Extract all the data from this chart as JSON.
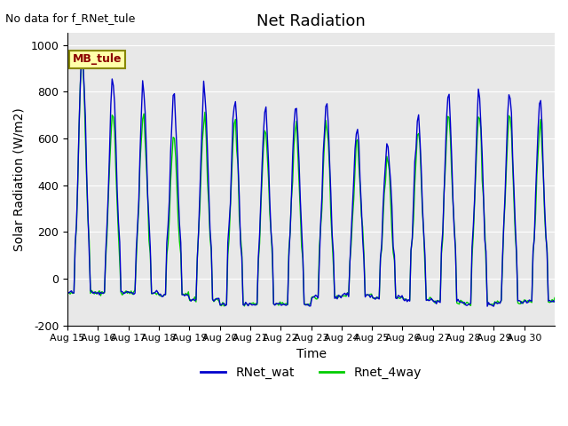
{
  "title": "Net Radiation",
  "xlabel": "Time",
  "ylabel": "Solar Radiation (W/m2)",
  "ylim": [
    -200,
    1050
  ],
  "bg_color": "#e8e8e8",
  "fig_color": "#ffffff",
  "line1_color": "#0000cc",
  "line2_color": "#00cc00",
  "line1_label": "RNet_wat",
  "line2_label": "Rnet_4way",
  "annotation_text": "No data for f_RNet_tule",
  "legend_label": "MB_tule",
  "xtick_labels": [
    "Aug 15",
    "Aug 16",
    "Aug 17",
    "Aug 18",
    "Aug 19",
    "Aug 20",
    "Aug 21",
    "Aug 22",
    "Aug 23",
    "Aug 24",
    "Aug 25",
    "Aug 26",
    "Aug 27",
    "Aug 28",
    "Aug 29",
    "Aug 30"
  ],
  "ytick_labels": [
    -200,
    0,
    200,
    400,
    600,
    800,
    1000
  ],
  "points_per_day": 24,
  "num_days": 16,
  "peaks_blue": [
    980,
    840,
    810,
    780,
    780,
    760,
    720,
    740,
    760,
    650,
    590,
    700,
    780,
    790,
    790,
    740
  ],
  "peaks_green": [
    940,
    700,
    700,
    600,
    680,
    660,
    630,
    640,
    660,
    570,
    520,
    630,
    690,
    700,
    700,
    640
  ],
  "night_blue": [
    -60,
    -60,
    -60,
    -70,
    -90,
    -110,
    -110,
    -110,
    -80,
    -70,
    -80,
    -90,
    -100,
    -110,
    -100,
    -95
  ],
  "night_green": [
    -60,
    -60,
    -60,
    -70,
    -90,
    -110,
    -110,
    -110,
    -80,
    -70,
    -80,
    -90,
    -100,
    -110,
    -100,
    -95
  ]
}
